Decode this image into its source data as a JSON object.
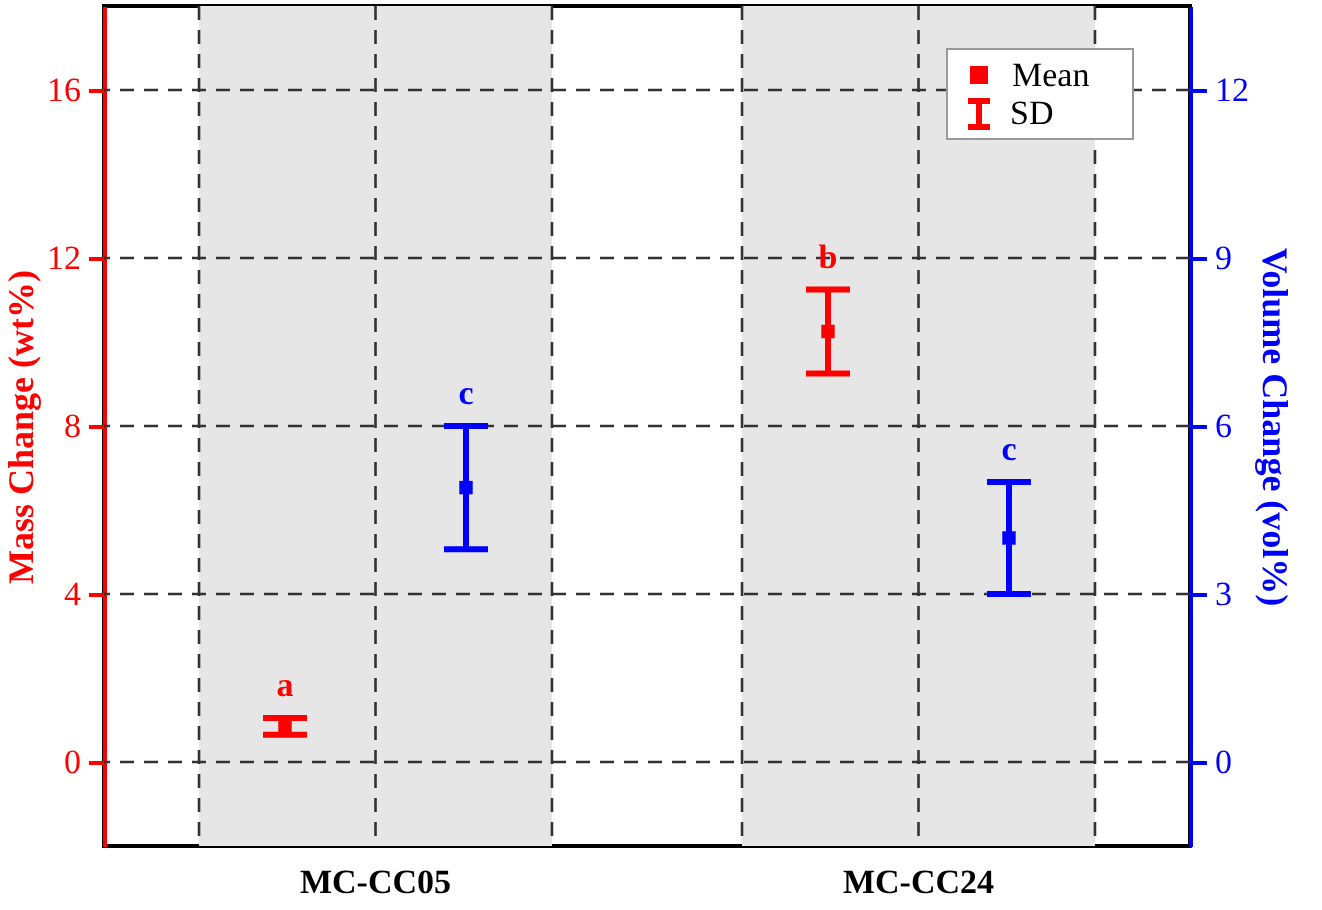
{
  "chart_data": {
    "type": "scatter",
    "categories": [
      "MC-CC05",
      "MC-CC24"
    ],
    "ylabel": "Mass Change (wt%)",
    "y2label": "Volume Change (vol%)",
    "series": [
      {
        "color": "#ff0000",
        "axis": "y",
        "values": [
          0.85,
          10.25
        ],
        "errors": [
          0.2,
          1.0
        ],
        "value_labels": [
          "a",
          "b"
        ]
      },
      {
        "color": "#0000ff",
        "axis": "y2",
        "values": [
          4.9,
          4.0
        ],
        "errors": [
          1.1,
          1.0
        ],
        "value_labels": [
          "c",
          "c"
        ]
      }
    ],
    "ylim": [
      -2,
      18
    ],
    "yticks": [
      0,
      4,
      8,
      12,
      16
    ],
    "y2lim": [
      -1.5,
      13.5
    ],
    "y2ticks": [
      0,
      3,
      6,
      9,
      12
    ],
    "bands": [
      {
        "axis": "x",
        "from": "MC-CC05",
        "to": "MC-CC05",
        "color": "#e6e6e6"
      },
      {
        "axis": "x",
        "from": "MC-CC24",
        "to": "MC-CC24",
        "color": "#e6e6e6"
      }
    ],
    "annotations": [
      "Mean",
      "SD"
    ],
    "grid": true,
    "marker": "square"
  }
}
